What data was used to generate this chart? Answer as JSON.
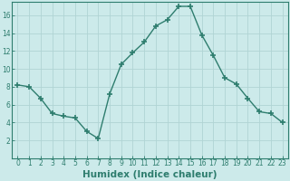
{
  "x": [
    0,
    1,
    2,
    3,
    4,
    5,
    6,
    7,
    8,
    9,
    10,
    11,
    12,
    13,
    14,
    15,
    16,
    17,
    18,
    19,
    20,
    21,
    22,
    23
  ],
  "y": [
    8.2,
    8.0,
    6.7,
    5.0,
    4.7,
    4.5,
    3.0,
    2.2,
    7.2,
    10.5,
    11.8,
    13.0,
    14.8,
    15.5,
    17.0,
    17.0,
    13.8,
    11.5,
    9.0,
    8.3,
    6.7,
    5.2,
    5.0,
    4.0
  ],
  "xlabel": "Humidex (Indice chaleur)",
  "xlim": [
    -0.5,
    23.5
  ],
  "ylim": [
    0,
    17.5
  ],
  "yticks": [
    2,
    4,
    6,
    8,
    10,
    12,
    14,
    16
  ],
  "xticks": [
    0,
    1,
    2,
    3,
    4,
    5,
    6,
    7,
    8,
    9,
    10,
    11,
    12,
    13,
    14,
    15,
    16,
    17,
    18,
    19,
    20,
    21,
    22,
    23
  ],
  "line_color": "#2e7d6e",
  "marker": "+",
  "marker_size": 4,
  "marker_lw": 1.2,
  "line_width": 1.0,
  "bg_color": "#cceaea",
  "grid_color": "#b0d4d4",
  "tick_fontsize": 5.5,
  "label_fontsize": 7.5
}
